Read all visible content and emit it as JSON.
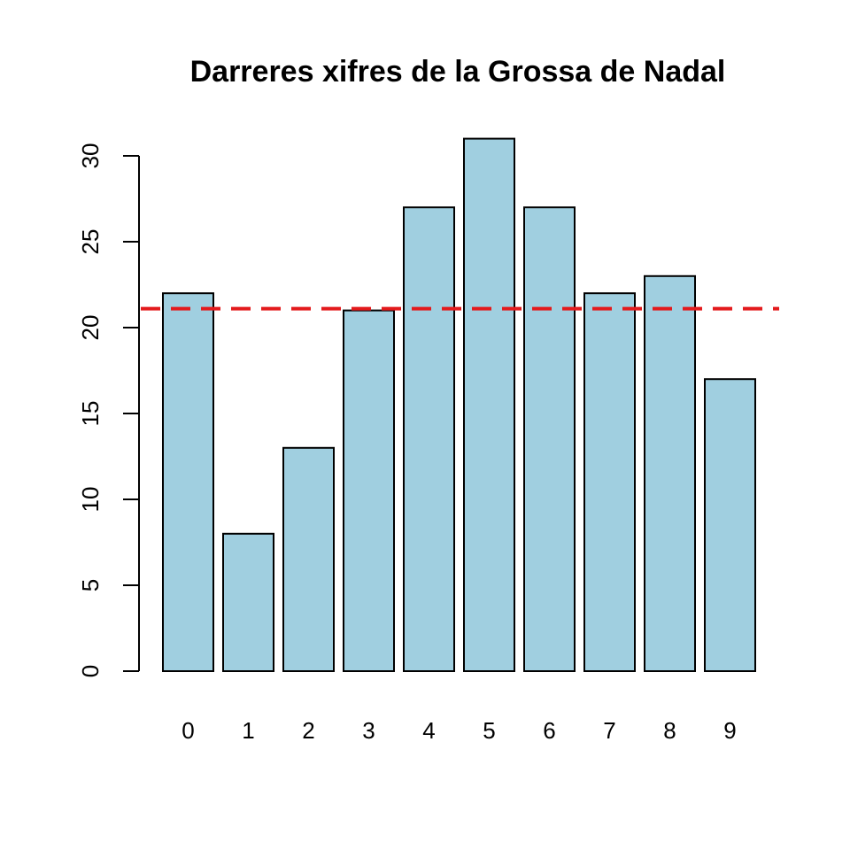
{
  "chart_data": {
    "type": "bar",
    "title": "Darreres xifres de la Grossa de Nadal",
    "xlabel": "",
    "ylabel": "",
    "categories": [
      "0",
      "1",
      "2",
      "3",
      "4",
      "5",
      "6",
      "7",
      "8",
      "9"
    ],
    "values": [
      22,
      8,
      13,
      21,
      27,
      31,
      27,
      22,
      23,
      17
    ],
    "ylim": [
      0,
      32
    ],
    "yticks": [
      0,
      5,
      10,
      15,
      20,
      25,
      30
    ],
    "ytick_labels": [
      "0",
      "5",
      "10",
      "15",
      "20",
      "25",
      "30"
    ],
    "reference_line": {
      "y": 21.1,
      "style": "dashed",
      "color": "#e31a1c"
    },
    "bar_color": "#a0cfe0",
    "grid": false,
    "legend": "none"
  }
}
